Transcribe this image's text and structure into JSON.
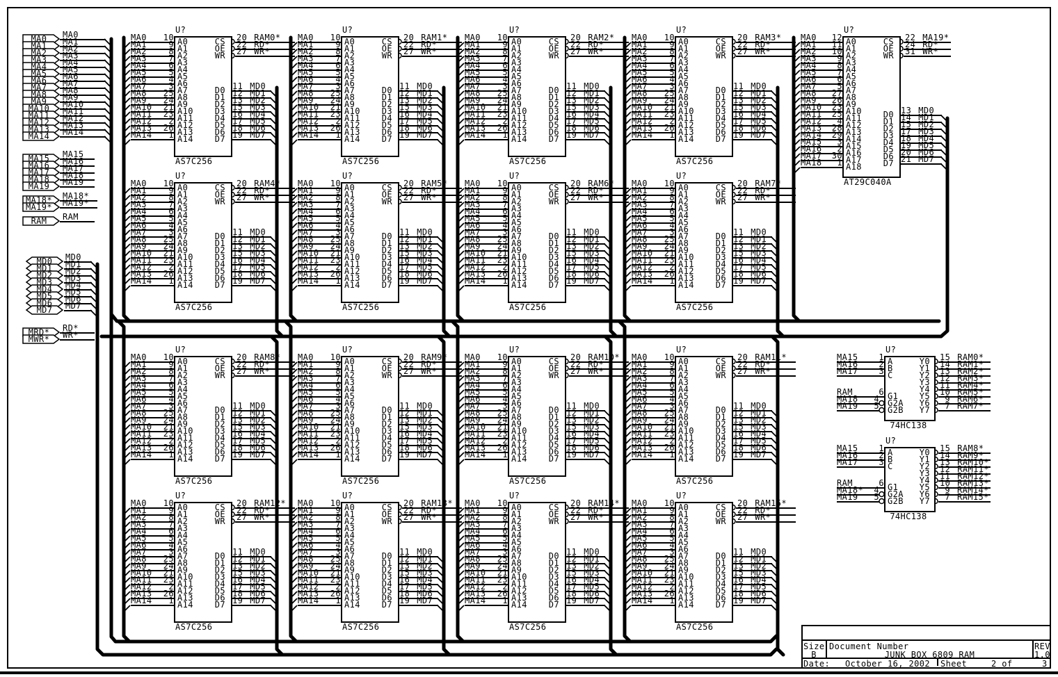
{
  "page": {
    "bg": "#ffffff",
    "line_color": "#000000"
  },
  "ports": {
    "ma_low": [
      "MA0",
      "MA1",
      "MA2",
      "MA3",
      "MA4",
      "MA5",
      "MA6",
      "MA7",
      "MA8",
      "MA9",
      "MA10",
      "MA11",
      "MA12",
      "MA13",
      "MA14"
    ],
    "ma_high": [
      "MA15",
      "MA16",
      "MA17",
      "MA18",
      "MA19"
    ],
    "ma_star": [
      "MA18*",
      "MA19*"
    ],
    "ram": [
      "RAM"
    ],
    "md": [
      "MD0",
      "MD1",
      "MD2",
      "MD3",
      "MD4",
      "MD5",
      "MD6",
      "MD7"
    ],
    "ctrl": [
      {
        "port": "MRD*",
        "net": "RD*"
      },
      {
        "port": "MWR*",
        "net": "WR*"
      }
    ]
  },
  "ram_chip": {
    "refdes": "U?",
    "part": "AS7C256",
    "left_pins": [
      {
        "net": "MA0",
        "pin": "10",
        "name": "A0"
      },
      {
        "net": "MA1",
        "pin": "9",
        "name": "A1"
      },
      {
        "net": "MA2",
        "pin": "8",
        "name": "A2"
      },
      {
        "net": "MA3",
        "pin": "7",
        "name": "A3"
      },
      {
        "net": "MA4",
        "pin": "6",
        "name": "A4"
      },
      {
        "net": "MA5",
        "pin": "5",
        "name": "A5"
      },
      {
        "net": "MA6",
        "pin": "4",
        "name": "A6"
      },
      {
        "net": "MA7",
        "pin": "3",
        "name": "A7"
      },
      {
        "net": "MA8",
        "pin": "25",
        "name": "A8"
      },
      {
        "net": "MA9",
        "pin": "24",
        "name": "A9"
      },
      {
        "net": "MA10",
        "pin": "21",
        "name": "A10"
      },
      {
        "net": "MA11",
        "pin": "23",
        "name": "A11"
      },
      {
        "net": "MA12",
        "pin": "2",
        "name": "A12"
      },
      {
        "net": "MA13",
        "pin": "26",
        "name": "A13"
      },
      {
        "net": "MA14",
        "pin": "1",
        "name": "A14"
      }
    ],
    "ctrl_pins": [
      {
        "pin": "20",
        "name": "CS",
        "net": ""
      },
      {
        "pin": "22",
        "name": "OE",
        "net": "RD*"
      },
      {
        "pin": "27",
        "name": "WR",
        "net": "WR*"
      }
    ],
    "data_pins": [
      {
        "pin": "11",
        "name": "D0",
        "net": "MD0"
      },
      {
        "pin": "12",
        "name": "D1",
        "net": "MD1"
      },
      {
        "pin": "13",
        "name": "D2",
        "net": "MD2"
      },
      {
        "pin": "15",
        "name": "D3",
        "net": "MD3"
      },
      {
        "pin": "16",
        "name": "D4",
        "net": "MD4"
      },
      {
        "pin": "17",
        "name": "D5",
        "net": "MD5"
      },
      {
        "pin": "18",
        "name": "D6",
        "net": "MD6"
      },
      {
        "pin": "19",
        "name": "D7",
        "net": "MD7"
      }
    ]
  },
  "ram_instances": [
    {
      "cs_net": "RAM0*"
    },
    {
      "cs_net": "RAM1*"
    },
    {
      "cs_net": "RAM2*"
    },
    {
      "cs_net": "RAM3*"
    },
    {
      "cs_net": "RAM4*"
    },
    {
      "cs_net": "RAM5*"
    },
    {
      "cs_net": "RAM6*"
    },
    {
      "cs_net": "RAM7*"
    },
    {
      "cs_net": "RAM8*"
    },
    {
      "cs_net": "RAM9*"
    },
    {
      "cs_net": "RAM10*"
    },
    {
      "cs_net": "RAM11*"
    },
    {
      "cs_net": "RAM12*"
    },
    {
      "cs_net": "RAM13*"
    },
    {
      "cs_net": "RAM14*"
    },
    {
      "cs_net": "RAM15*"
    }
  ],
  "rom_chip": {
    "refdes": "U?",
    "part": "AT29C040A",
    "left_pins": [
      {
        "net": "MA0",
        "pin": "12",
        "name": "A0"
      },
      {
        "net": "MA1",
        "pin": "11",
        "name": "A1"
      },
      {
        "net": "MA2",
        "pin": "10",
        "name": "A2"
      },
      {
        "net": "MA3",
        "pin": "9",
        "name": "A3"
      },
      {
        "net": "MA4",
        "pin": "8",
        "name": "A4"
      },
      {
        "net": "MA5",
        "pin": "7",
        "name": "A5"
      },
      {
        "net": "MA6",
        "pin": "6",
        "name": "A6"
      },
      {
        "net": "MA7",
        "pin": "5",
        "name": "A7"
      },
      {
        "net": "MA8",
        "pin": "27",
        "name": "A8"
      },
      {
        "net": "MA9",
        "pin": "26",
        "name": "A9"
      },
      {
        "net": "MA10",
        "pin": "23",
        "name": "A10"
      },
      {
        "net": "MA11",
        "pin": "25",
        "name": "A11"
      },
      {
        "net": "MA12",
        "pin": "4",
        "name": "A12"
      },
      {
        "net": "MA13",
        "pin": "28",
        "name": "A13"
      },
      {
        "net": "MA14",
        "pin": "29",
        "name": "A14"
      },
      {
        "net": "MA15",
        "pin": "3",
        "name": "A15"
      },
      {
        "net": "MA16",
        "pin": "2",
        "name": "A16"
      },
      {
        "net": "MA17",
        "pin": "30",
        "name": "A17"
      },
      {
        "net": "MA18",
        "pin": "1",
        "name": "A18"
      }
    ],
    "ctrl_pins": [
      {
        "pin": "22",
        "name": "CS",
        "net": "MA19*"
      },
      {
        "pin": "24",
        "name": "OE",
        "net": "RD*"
      },
      {
        "pin": "31",
        "name": "WR",
        "net": "WR*"
      }
    ],
    "data_pins": [
      {
        "pin": "13",
        "name": "D0",
        "net": "MD0"
      },
      {
        "pin": "14",
        "name": "D1",
        "net": "MD1"
      },
      {
        "pin": "15",
        "name": "D2",
        "net": "MD2"
      },
      {
        "pin": "17",
        "name": "D3",
        "net": "MD3"
      },
      {
        "pin": "18",
        "name": "D4",
        "net": "MD4"
      },
      {
        "pin": "19",
        "name": "D5",
        "net": "MD5"
      },
      {
        "pin": "20",
        "name": "D6",
        "net": "MD6"
      },
      {
        "pin": "21",
        "name": "D7",
        "net": "MD7"
      }
    ]
  },
  "decoders": [
    {
      "refdes": "U?",
      "part": "74HC138",
      "inputs": [
        {
          "net": "MA15",
          "pin": "1",
          "name": "A"
        },
        {
          "net": "MA16",
          "pin": "2",
          "name": "B"
        },
        {
          "net": "MA17",
          "pin": "3",
          "name": "C"
        },
        {
          "net": "RAM",
          "pin": "6",
          "name": "G1"
        },
        {
          "net": "MA18",
          "pin": "4",
          "name": "G2A"
        },
        {
          "net": "MA19",
          "pin": "5",
          "name": "G2B"
        }
      ],
      "outputs": [
        {
          "pin": "15",
          "name": "Y0",
          "net": "RAM0*"
        },
        {
          "pin": "14",
          "name": "Y1",
          "net": "RAM1*"
        },
        {
          "pin": "13",
          "name": "Y2",
          "net": "RAM2*"
        },
        {
          "pin": "12",
          "name": "Y3",
          "net": "RAM3*"
        },
        {
          "pin": "11",
          "name": "Y4",
          "net": "RAM4*"
        },
        {
          "pin": "10",
          "name": "Y5",
          "net": "RAM5*"
        },
        {
          "pin": "9",
          "name": "Y6",
          "net": "RAM6*"
        },
        {
          "pin": "7",
          "name": "Y7",
          "net": "RAM7*"
        }
      ]
    },
    {
      "refdes": "U?",
      "part": "74HC138",
      "inputs": [
        {
          "net": "MA15",
          "pin": "1",
          "name": "A"
        },
        {
          "net": "MA16",
          "pin": "2",
          "name": "B"
        },
        {
          "net": "MA17",
          "pin": "3",
          "name": "C"
        },
        {
          "net": "RAM",
          "pin": "6",
          "name": "G1"
        },
        {
          "net": "MA18*",
          "pin": "4",
          "name": "G2A"
        },
        {
          "net": "MA19",
          "pin": "5",
          "name": "G2B"
        }
      ],
      "outputs": [
        {
          "pin": "15",
          "name": "Y0",
          "net": "RAM8*"
        },
        {
          "pin": "14",
          "name": "Y1",
          "net": "RAM9*"
        },
        {
          "pin": "13",
          "name": "Y2",
          "net": "RAM10*"
        },
        {
          "pin": "12",
          "name": "Y3",
          "net": "RAM11*"
        },
        {
          "pin": "11",
          "name": "Y4",
          "net": "RAM12*"
        },
        {
          "pin": "10",
          "name": "Y5",
          "net": "RAM13*"
        },
        {
          "pin": "9",
          "name": "Y6",
          "net": "RAM14*"
        },
        {
          "pin": "7",
          "name": "Y7",
          "net": "RAM15*"
        }
      ]
    }
  ],
  "title_block": {
    "size_label": "Size",
    "size_value": "B",
    "docnum_label": "Document Number",
    "docnum_value": "JUNK BOX 6809 RAM",
    "rev_label": "REV",
    "rev_value": "1.0",
    "date_label": "Date:",
    "date_value": "October 16, 2002",
    "sheet_label": "Sheet",
    "sheet_value": "2 of",
    "sheet_total": "3"
  }
}
